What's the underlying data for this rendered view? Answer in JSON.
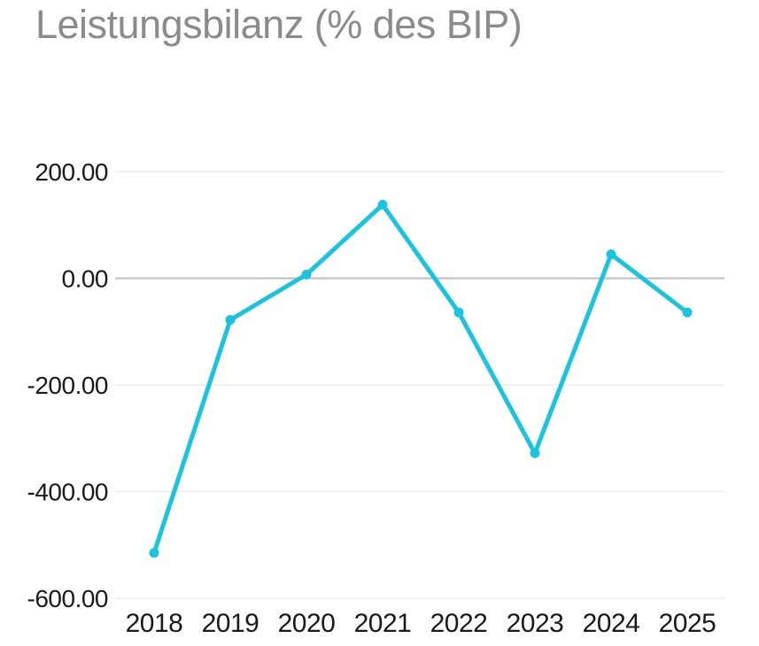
{
  "title": "Leistungsbilanz (% des BIP)",
  "colors": {
    "line": "#1bc4de",
    "title_text": "#8b8b8d",
    "axis_text": "#1a1a1a",
    "grid": "#e3e3e3",
    "zero_line": "#bdbdbd",
    "background": "#ffffff"
  },
  "chart_data": {
    "type": "line",
    "title": "Leistungsbilanz (% des BIP)",
    "categories": [
      "2018",
      "2019",
      "2020",
      "2021",
      "2022",
      "2023",
      "2024",
      "2025"
    ],
    "series": [
      {
        "name": "Leistungsbilanz (% des BIP)",
        "values": [
          -515,
          -78,
          7,
          138,
          -64,
          -328,
          45,
          -64
        ]
      }
    ],
    "xlabel": "",
    "ylabel": "",
    "ylim": [
      -600,
      200
    ],
    "yticks": [
      {
        "value": 200,
        "label": "200.00"
      },
      {
        "value": 0,
        "label": "0.00"
      },
      {
        "value": -200,
        "label": "-200.00"
      },
      {
        "value": -400,
        "label": "-400.00"
      },
      {
        "value": -600,
        "label": "-600.00"
      }
    ],
    "grid": "horizontal",
    "legend": "none",
    "marker": "circle"
  }
}
